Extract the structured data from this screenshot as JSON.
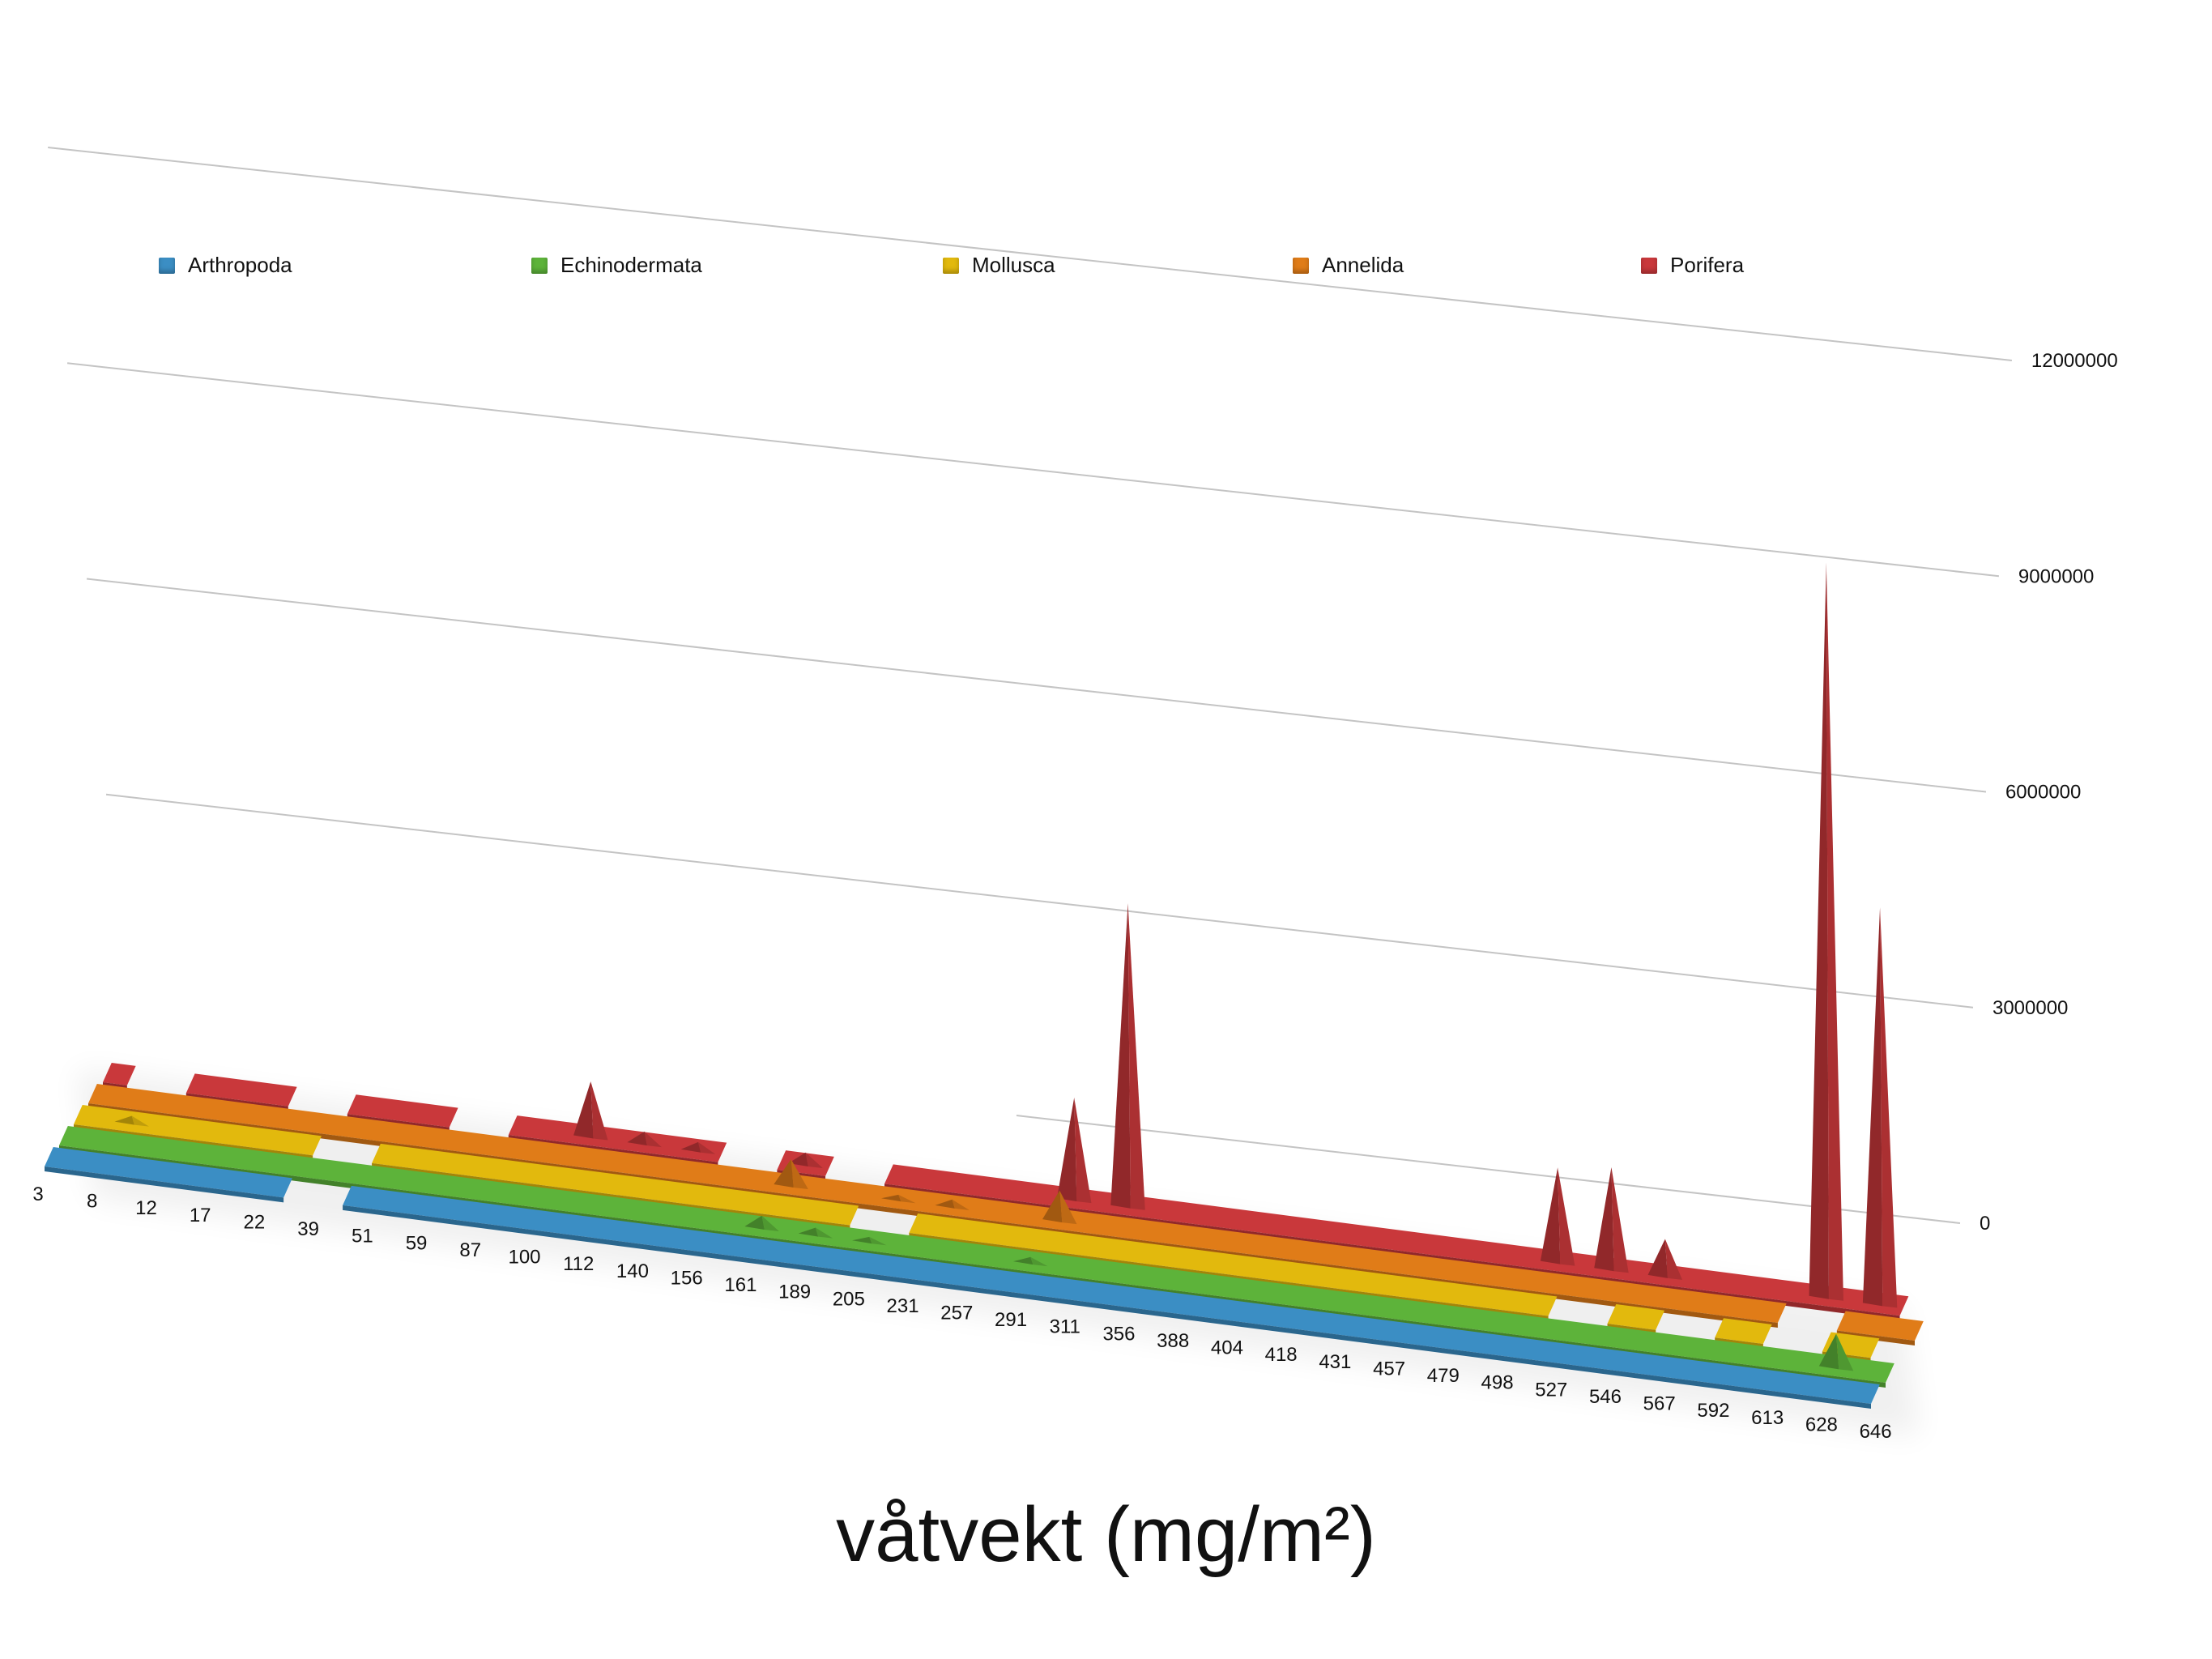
{
  "chart_data": {
    "type": "area",
    "title": "våtvekt (mg/m²)",
    "categories": [
      "3",
      "8",
      "12",
      "17",
      "22",
      "39",
      "51",
      "59",
      "87",
      "100",
      "112",
      "140",
      "156",
      "161",
      "189",
      "205",
      "231",
      "257",
      "291",
      "311",
      "356",
      "388",
      "404",
      "418",
      "431",
      "457",
      "479",
      "498",
      "527",
      "546",
      "567",
      "592",
      "613",
      "628",
      "646"
    ],
    "ylim": [
      0,
      12000000
    ],
    "yticks": [
      "0",
      "3000000",
      "6000000",
      "9000000",
      "12000000"
    ],
    "grid": true,
    "legend_position": "top",
    "series": [
      {
        "name": "Arthropoda",
        "color": "#3b8ec4",
        "values": [
          20000,
          20000,
          20000,
          20000,
          20000,
          null,
          20000,
          20000,
          20000,
          20000,
          20000,
          20000,
          20000,
          20000,
          20000,
          20000,
          20000,
          20000,
          20000,
          20000,
          20000,
          20000,
          20000,
          20000,
          20000,
          20000,
          20000,
          20000,
          20000,
          20000,
          20000,
          20000,
          20000,
          20000,
          20000
        ]
      },
      {
        "name": "Echinodermata",
        "color": "#5db33a",
        "values": [
          15000,
          15000,
          15000,
          15000,
          15000,
          15000,
          15000,
          15000,
          15000,
          15000,
          15000,
          15000,
          15000,
          150000,
          80000,
          50000,
          40000,
          40000,
          60000,
          40000,
          30000,
          20000,
          20000,
          20000,
          20000,
          20000,
          20000,
          20000,
          20000,
          20000,
          20000,
          20000,
          20000,
          450000,
          15000
        ]
      },
      {
        "name": "Mollusca",
        "color": "#e2b90d",
        "values": [
          15000,
          80000,
          15000,
          15000,
          15000,
          null,
          15000,
          15000,
          15000,
          15000,
          40000,
          15000,
          15000,
          15000,
          15000,
          null,
          15000,
          15000,
          30000,
          15000,
          15000,
          15000,
          15000,
          15000,
          15000,
          15000,
          15000,
          15000,
          null,
          15000,
          null,
          15000,
          null,
          15000,
          null
        ]
      },
      {
        "name": "Annelida",
        "color": "#e07c18",
        "values": [
          15000,
          15000,
          15000,
          15000,
          15000,
          15000,
          15000,
          15000,
          15000,
          15000,
          15000,
          15000,
          15000,
          350000,
          15000,
          50000,
          80000,
          40000,
          400000,
          40000,
          15000,
          15000,
          15000,
          15000,
          15000,
          15000,
          15000,
          15000,
          15000,
          15000,
          15000,
          15000,
          null,
          15000,
          15000
        ]
      },
      {
        "name": "Porifera",
        "color": "#c9383b",
        "values": [
          20000,
          null,
          20000,
          20000,
          null,
          20000,
          20000,
          null,
          20000,
          750000,
          150000,
          100000,
          null,
          150000,
          null,
          20000,
          20000,
          20000,
          1400000,
          4200000,
          20000,
          20000,
          20000,
          20000,
          20000,
          20000,
          20000,
          1300000,
          1400000,
          500000,
          20000,
          20000,
          10200000,
          5500000,
          null
        ]
      }
    ]
  }
}
